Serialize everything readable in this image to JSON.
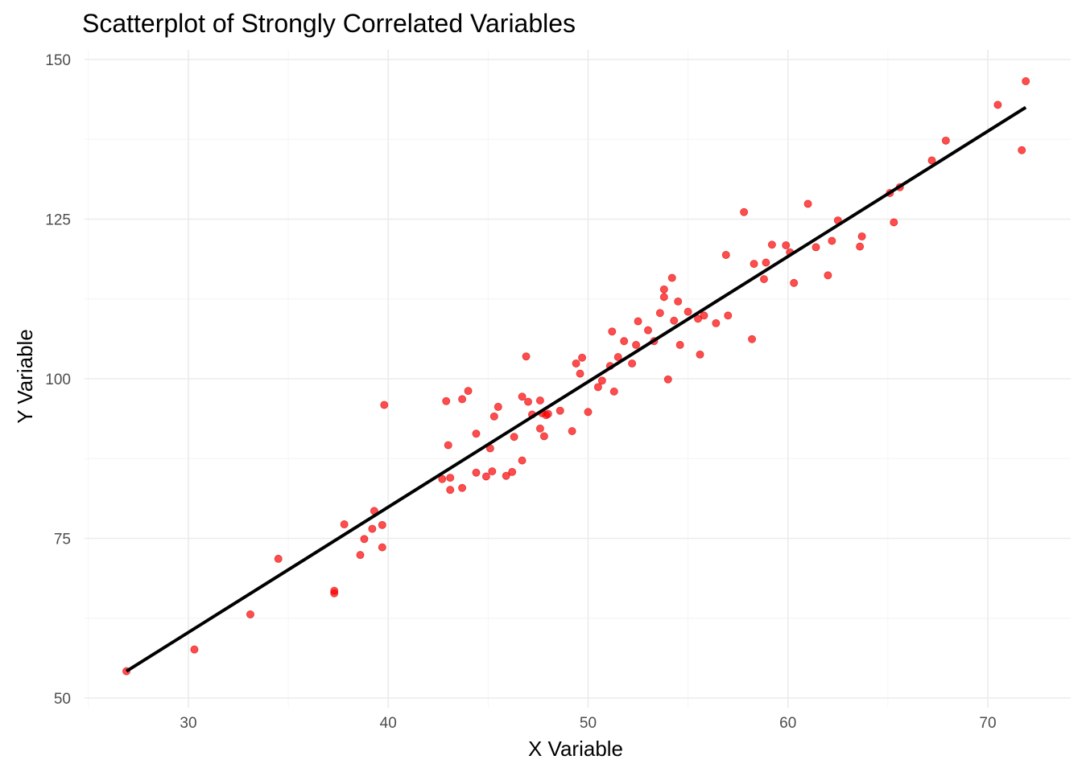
{
  "chart_data": {
    "type": "scatter",
    "title": "Scatterplot of Strongly Correlated Variables",
    "xlabel": "X Variable",
    "ylabel": "Y Variable",
    "xlim": [
      25,
      74
    ],
    "ylim": [
      50,
      150
    ],
    "x_ticks": [
      30,
      40,
      50,
      60,
      70
    ],
    "y_ticks": [
      50,
      75,
      100,
      125,
      150
    ],
    "grid": true,
    "point_color": "#ff0000",
    "line_color": "#000000",
    "trend_line": {
      "x": [
        26.9,
        71.9
      ],
      "y": [
        54.2,
        142.5
      ]
    },
    "series": [
      {
        "points": [
          [
            26.9,
            54.2
          ],
          [
            30.3,
            57.6
          ],
          [
            33.1,
            63.1
          ],
          [
            34.5,
            71.8
          ],
          [
            37.3,
            66.4
          ],
          [
            37.3,
            66.8
          ],
          [
            37.8,
            77.2
          ],
          [
            38.6,
            72.4
          ],
          [
            38.8,
            74.9
          ],
          [
            39.2,
            76.5
          ],
          [
            39.3,
            79.3
          ],
          [
            39.7,
            73.6
          ],
          [
            39.7,
            77.1
          ],
          [
            39.8,
            95.9
          ],
          [
            42.7,
            84.3
          ],
          [
            42.9,
            96.5
          ],
          [
            43.0,
            89.6
          ],
          [
            43.1,
            84.5
          ],
          [
            43.1,
            82.6
          ],
          [
            43.7,
            82.9
          ],
          [
            43.7,
            96.8
          ],
          [
            44.0,
            98.1
          ],
          [
            44.4,
            85.3
          ],
          [
            44.4,
            91.4
          ],
          [
            44.9,
            84.7
          ],
          [
            45.1,
            89.1
          ],
          [
            45.2,
            85.5
          ],
          [
            45.3,
            94.1
          ],
          [
            45.5,
            95.6
          ],
          [
            45.9,
            84.8
          ],
          [
            46.2,
            85.4
          ],
          [
            46.3,
            90.9
          ],
          [
            46.7,
            97.2
          ],
          [
            46.7,
            87.2
          ],
          [
            46.9,
            103.5
          ],
          [
            47.0,
            96.4
          ],
          [
            47.2,
            94.4
          ],
          [
            47.6,
            96.6
          ],
          [
            47.6,
            92.2
          ],
          [
            47.7,
            94.6
          ],
          [
            47.8,
            91.0
          ],
          [
            47.9,
            94.3
          ],
          [
            48.0,
            94.5
          ],
          [
            48.6,
            95.0
          ],
          [
            49.2,
            91.8
          ],
          [
            49.4,
            102.4
          ],
          [
            49.6,
            100.8
          ],
          [
            49.7,
            103.3
          ],
          [
            50.0,
            94.8
          ],
          [
            50.5,
            98.7
          ],
          [
            50.7,
            99.7
          ],
          [
            51.1,
            102.0
          ],
          [
            51.2,
            107.4
          ],
          [
            51.3,
            98.0
          ],
          [
            51.5,
            103.4
          ],
          [
            51.8,
            105.9
          ],
          [
            52.2,
            102.4
          ],
          [
            52.4,
            105.3
          ],
          [
            52.5,
            109.0
          ],
          [
            53.0,
            107.6
          ],
          [
            53.3,
            105.9
          ],
          [
            53.6,
            110.3
          ],
          [
            53.8,
            114.0
          ],
          [
            53.8,
            112.8
          ],
          [
            54.0,
            99.9
          ],
          [
            54.2,
            115.8
          ],
          [
            54.3,
            109.1
          ],
          [
            54.5,
            112.1
          ],
          [
            54.6,
            105.3
          ],
          [
            55.0,
            110.5
          ],
          [
            55.5,
            109.4
          ],
          [
            55.6,
            103.8
          ],
          [
            55.8,
            109.9
          ],
          [
            56.4,
            108.7
          ],
          [
            56.9,
            119.4
          ],
          [
            57.0,
            109.9
          ],
          [
            57.8,
            126.1
          ],
          [
            58.2,
            106.2
          ],
          [
            58.3,
            118.0
          ],
          [
            58.8,
            115.6
          ],
          [
            58.9,
            118.2
          ],
          [
            59.2,
            121.0
          ],
          [
            59.9,
            120.9
          ],
          [
            60.1,
            119.8
          ],
          [
            60.3,
            115.0
          ],
          [
            61.0,
            127.4
          ],
          [
            61.4,
            120.6
          ],
          [
            62.0,
            116.2
          ],
          [
            62.2,
            121.6
          ],
          [
            62.5,
            124.8
          ],
          [
            63.6,
            120.7
          ],
          [
            63.7,
            122.3
          ],
          [
            65.1,
            129.1
          ],
          [
            65.3,
            124.5
          ],
          [
            65.6,
            130.0
          ],
          [
            67.2,
            134.2
          ],
          [
            67.9,
            137.3
          ],
          [
            70.5,
            142.9
          ],
          [
            71.7,
            135.8
          ],
          [
            71.9,
            146.6
          ]
        ]
      }
    ]
  }
}
